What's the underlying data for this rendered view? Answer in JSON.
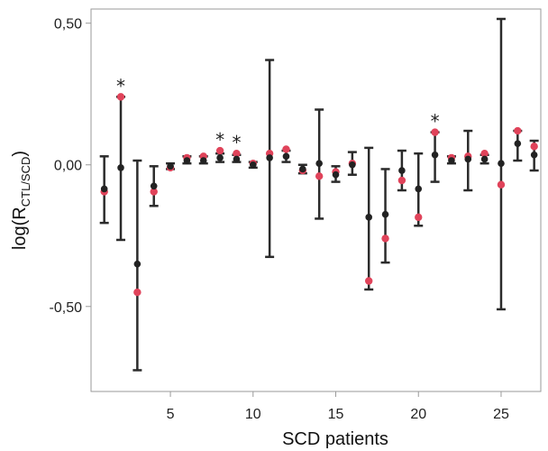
{
  "chart_data": {
    "type": "scatter",
    "title": "",
    "xlabel": "SCD patients",
    "ylabel": {
      "prefix": "log(R",
      "subscript": "CTL/SCD",
      "suffix": ")"
    },
    "xlim": [
      0.2,
      27.4
    ],
    "ylim": [
      -0.8,
      0.55
    ],
    "x_ticks": [
      5,
      10,
      15,
      20,
      25
    ],
    "y_ticks": [
      {
        "value": 0.5,
        "label": "0,50"
      },
      {
        "value": 0.0,
        "label": "0,00"
      },
      {
        "value": -0.5,
        "label": "-0,50"
      }
    ],
    "colors": {
      "mean": "#222222",
      "error": "#2b2b2b",
      "observed": "#e0435a",
      "axis": "#9a9a9a"
    },
    "series": [
      {
        "key": "mean",
        "points": [
          {
            "x": 1,
            "y": -0.085,
            "lo": -0.205,
            "hi": 0.03
          },
          {
            "x": 2,
            "y": -0.01,
            "lo": -0.265,
            "hi": 0.24
          },
          {
            "x": 3,
            "y": -0.35,
            "lo": -0.725,
            "hi": 0.015
          },
          {
            "x": 4,
            "y": -0.075,
            "lo": -0.145,
            "hi": -0.005
          },
          {
            "x": 5,
            "y": -0.005,
            "lo": -0.015,
            "hi": 0.005
          },
          {
            "x": 6,
            "y": 0.015,
            "lo": 0.005,
            "hi": 0.03
          },
          {
            "x": 7,
            "y": 0.015,
            "lo": 0.005,
            "hi": 0.03
          },
          {
            "x": 8,
            "y": 0.025,
            "lo": 0.01,
            "hi": 0.04
          },
          {
            "x": 9,
            "y": 0.02,
            "lo": 0.01,
            "hi": 0.035
          },
          {
            "x": 10,
            "y": 0.0,
            "lo": -0.01,
            "hi": 0.01
          },
          {
            "x": 11,
            "y": 0.025,
            "lo": -0.325,
            "hi": 0.37
          },
          {
            "x": 12,
            "y": 0.03,
            "lo": 0.01,
            "hi": 0.05
          },
          {
            "x": 13,
            "y": -0.015,
            "lo": -0.03,
            "hi": 0.0
          },
          {
            "x": 14,
            "y": 0.005,
            "lo": -0.19,
            "hi": 0.195
          },
          {
            "x": 15,
            "y": -0.035,
            "lo": -0.06,
            "hi": -0.005
          },
          {
            "x": 16,
            "y": 0.0,
            "lo": -0.035,
            "hi": 0.045
          },
          {
            "x": 17,
            "y": -0.185,
            "lo": -0.44,
            "hi": 0.06
          },
          {
            "x": 18,
            "y": -0.175,
            "lo": -0.345,
            "hi": -0.015
          },
          {
            "x": 19,
            "y": -0.02,
            "lo": -0.09,
            "hi": 0.05
          },
          {
            "x": 20,
            "y": -0.085,
            "lo": -0.215,
            "hi": 0.04
          },
          {
            "x": 21,
            "y": 0.035,
            "lo": -0.06,
            "hi": 0.115
          },
          {
            "x": 22,
            "y": 0.015,
            "lo": 0.005,
            "hi": 0.03
          },
          {
            "x": 23,
            "y": 0.02,
            "lo": -0.09,
            "hi": 0.12
          },
          {
            "x": 24,
            "y": 0.02,
            "lo": 0.005,
            "hi": 0.035
          },
          {
            "x": 25,
            "y": 0.005,
            "lo": -0.51,
            "hi": 0.515
          },
          {
            "x": 26,
            "y": 0.075,
            "lo": 0.015,
            "hi": 0.12
          },
          {
            "x": 27,
            "y": 0.035,
            "lo": -0.02,
            "hi": 0.085
          }
        ]
      },
      {
        "key": "observed",
        "points": [
          {
            "x": 1,
            "y": -0.095
          },
          {
            "x": 2,
            "y": 0.24
          },
          {
            "x": 3,
            "y": -0.45
          },
          {
            "x": 4,
            "y": -0.095
          },
          {
            "x": 5,
            "y": -0.01
          },
          {
            "x": 6,
            "y": 0.025
          },
          {
            "x": 7,
            "y": 0.03
          },
          {
            "x": 8,
            "y": 0.05
          },
          {
            "x": 9,
            "y": 0.04
          },
          {
            "x": 10,
            "y": 0.005
          },
          {
            "x": 11,
            "y": 0.04
          },
          {
            "x": 12,
            "y": 0.055
          },
          {
            "x": 13,
            "y": -0.02
          },
          {
            "x": 14,
            "y": -0.04
          },
          {
            "x": 15,
            "y": -0.025
          },
          {
            "x": 16,
            "y": 0.005
          },
          {
            "x": 17,
            "y": -0.41
          },
          {
            "x": 18,
            "y": -0.26
          },
          {
            "x": 19,
            "y": -0.055
          },
          {
            "x": 20,
            "y": -0.185
          },
          {
            "x": 21,
            "y": 0.115
          },
          {
            "x": 22,
            "y": 0.025
          },
          {
            "x": 23,
            "y": 0.03
          },
          {
            "x": 24,
            "y": 0.04
          },
          {
            "x": 25,
            "y": -0.07
          },
          {
            "x": 26,
            "y": 0.12
          },
          {
            "x": 27,
            "y": 0.065
          }
        ]
      }
    ],
    "annotations": [
      {
        "x": 2,
        "text": "*"
      },
      {
        "x": 8,
        "text": "*"
      },
      {
        "x": 9,
        "text": "*"
      },
      {
        "x": 21,
        "text": "*"
      }
    ]
  }
}
